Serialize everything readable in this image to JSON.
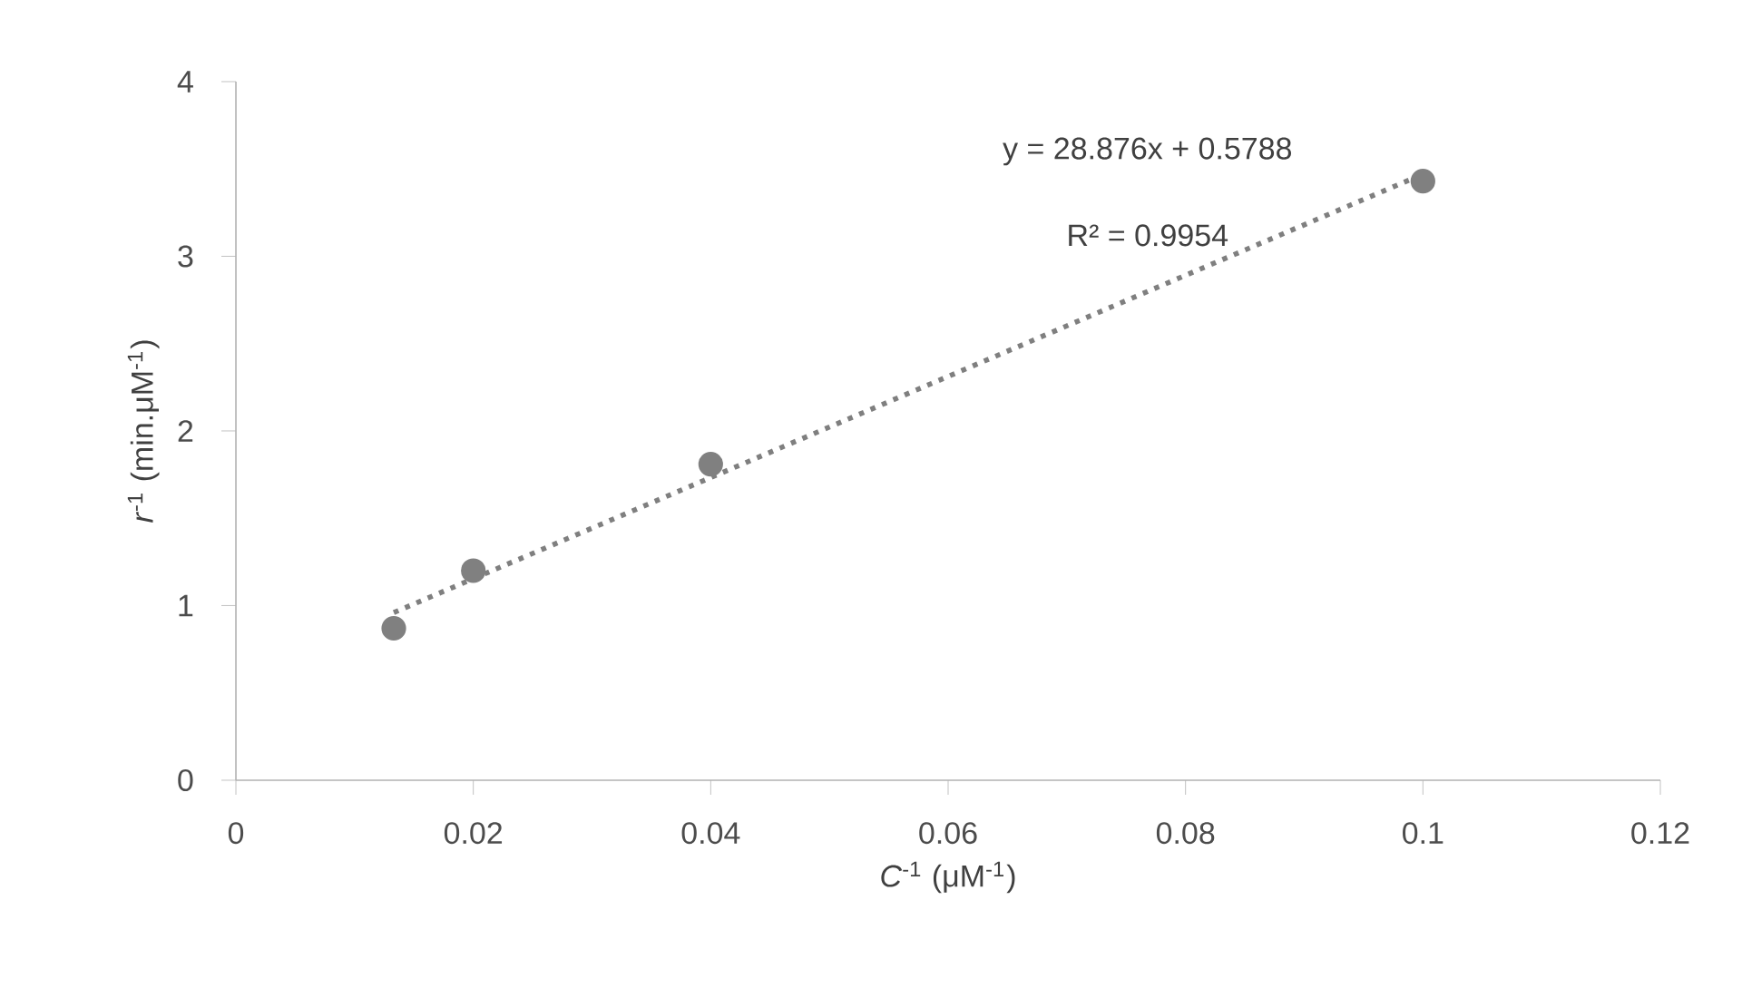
{
  "chart_data": {
    "type": "scatter",
    "xlabel": "*C*$^{-1}$ (μM$^{-1}$)",
    "ylabel": "*r*$^{-1}$ (min.μM$^{-1}$)",
    "annotations": [
      "y = 28.876x + 0.5788",
      "R² = 0.9954"
    ],
    "xlim": [
      0,
      0.12
    ],
    "xticks": [
      0,
      0.02,
      0.04,
      0.06,
      0.08,
      0.1,
      0.12
    ],
    "ylim": [
      0,
      4
    ],
    "yticks": [
      0,
      1,
      2,
      3,
      4
    ],
    "series": [
      {
        "color": "#808080",
        "marker": "circle",
        "x": [
          0.0133,
          0.02,
          0.04,
          0.1
        ],
        "values": [
          0.87,
          1.2,
          1.81,
          3.43
        ]
      },
      {
        "type": "line",
        "color": "#7f7f7f",
        "marker": "none",
        "line_style": "dotted",
        "x": [
          0.0133,
          0.1
        ],
        "values": [
          0.96,
          3.47
        ]
      }
    ]
  }
}
